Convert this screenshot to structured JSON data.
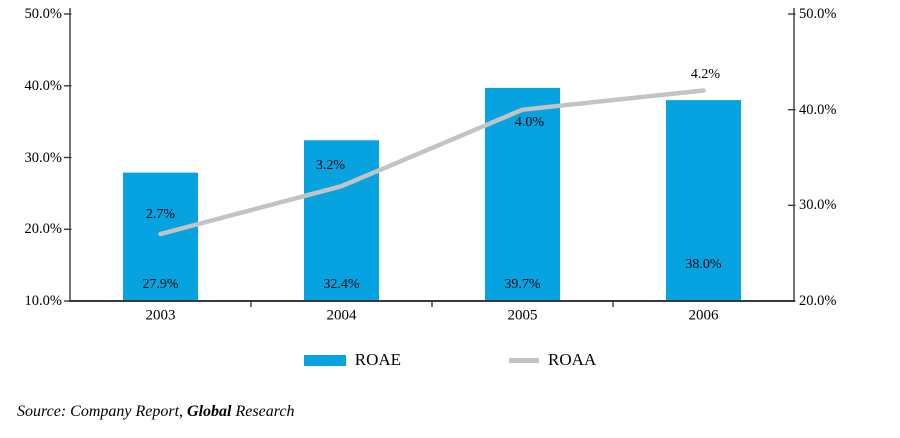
{
  "chart_data": {
    "type": "bar+line combo",
    "categories": [
      "2003",
      "2004",
      "2005",
      "2006"
    ],
    "series": [
      {
        "name": "ROAE",
        "type": "bar",
        "axis": "left",
        "values": [
          27.9,
          32.4,
          39.7,
          38.0
        ],
        "labels": [
          "27.9%",
          "32.4%",
          "39.7%",
          "38.0%"
        ],
        "color": "#07a2e0"
      },
      {
        "name": "ROAA",
        "type": "line",
        "axis": "right",
        "values": [
          2.7,
          3.2,
          4.0,
          4.2
        ],
        "plotted_values": [
          27,
          32,
          40,
          42
        ],
        "plot_note": "line drawn at value x10 against right axis",
        "labels": [
          "2.7%",
          "3.2%",
          "4.0%",
          "4.2%"
        ],
        "color": "#c3c3c3"
      }
    ],
    "left_axis": {
      "min": 10,
      "max": 50,
      "tick_values": [
        50,
        40,
        30,
        20,
        10
      ],
      "tick_labels": [
        "50.0%",
        "40.0%",
        "30.0%",
        "20.0%",
        "10.0%"
      ]
    },
    "right_axis": {
      "min": 20,
      "max": 50,
      "tick_values": [
        50,
        40,
        30,
        20
      ],
      "tick_labels": [
        "50.0%",
        "40.0%",
        "30.0%",
        "20.0%"
      ]
    },
    "grid": false,
    "legend": {
      "position": "bottom-center",
      "items": [
        {
          "label": "ROAE",
          "swatch": "bar",
          "color": "#07a2e0"
        },
        {
          "label": "ROAA",
          "swatch": "line",
          "color": "#c3c3c3"
        }
      ]
    },
    "label_offsets": {
      "line_label_dx": [
        0,
        -11,
        7,
        2
      ],
      "line_label_dy": [
        -19,
        -20,
        13,
        -16
      ],
      "bar_label_rise": [
        16,
        16,
        16,
        36
      ]
    },
    "colors": {
      "bar": "#07a2e0",
      "line": "#c3c3c3",
      "axis": "#3a3a3a",
      "text": "#000000"
    }
  },
  "source": {
    "prefix": "Source: Company Report, ",
    "bold": "Global",
    "suffix": " Research"
  }
}
